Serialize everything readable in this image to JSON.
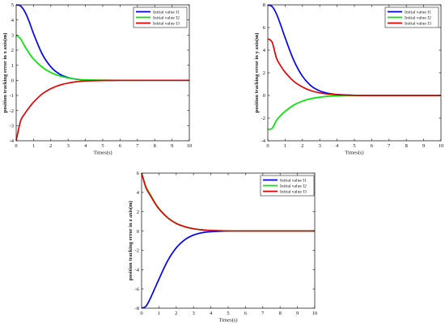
{
  "chart_data": [
    {
      "type": "line",
      "title": "",
      "xlabel": "Times(s)",
      "ylabel": "position tracking error in x axis(m)",
      "xlim": [
        0,
        10
      ],
      "ylim": [
        -4,
        5
      ],
      "xticks": [
        0,
        1,
        2,
        3,
        4,
        5,
        6,
        7,
        8,
        9,
        10
      ],
      "yticks": [
        -4,
        -3,
        -2,
        -1,
        0,
        1,
        2,
        3,
        4,
        5
      ],
      "grid": false,
      "legend_position": "top-right",
      "x": [
        0,
        0.25,
        0.5,
        0.75,
        1,
        1.5,
        2,
        2.5,
        3,
        3.5,
        4,
        5,
        6,
        7,
        8,
        9,
        10
      ],
      "series": [
        {
          "name": "Initial value I1",
          "color": "#0000ff",
          "values": [
            5,
            4.93,
            4.55,
            3.9,
            3.1,
            1.75,
            0.9,
            0.42,
            0.18,
            0.07,
            0.02,
            0,
            0,
            0,
            0,
            0,
            0
          ]
        },
        {
          "name": "Initial value I2",
          "color": "#00e600",
          "values": [
            3,
            2.75,
            2.25,
            1.8,
            1.42,
            0.88,
            0.52,
            0.3,
            0.16,
            0.08,
            0.03,
            0.01,
            0,
            0,
            0,
            0,
            0
          ]
        },
        {
          "name": "Initial value I3",
          "color": "#e60000",
          "values": [
            -4,
            -2.7,
            -2.2,
            -1.8,
            -1.45,
            -0.9,
            -0.55,
            -0.32,
            -0.18,
            -0.09,
            -0.04,
            -0.01,
            0,
            0,
            0,
            0,
            0
          ]
        }
      ]
    },
    {
      "type": "line",
      "title": "",
      "xlabel": "Times(s)",
      "ylabel": "position tracking error in y axis(m)",
      "xlim": [
        0,
        10
      ],
      "ylim": [
        -4,
        8
      ],
      "xticks": [
        0,
        1,
        2,
        3,
        4,
        5,
        6,
        7,
        8,
        9,
        10
      ],
      "yticks": [
        -4,
        -2,
        0,
        2,
        4,
        6,
        8
      ],
      "grid": false,
      "legend_position": "top-right",
      "x": [
        0,
        0.25,
        0.5,
        0.75,
        1,
        1.5,
        2,
        2.5,
        3,
        3.5,
        4,
        5,
        6,
        7,
        8,
        9,
        10
      ],
      "series": [
        {
          "name": "Initial value I1",
          "color": "#0000ff",
          "values": [
            8,
            7.85,
            7.2,
            6.2,
            5.1,
            3.1,
            1.7,
            0.85,
            0.4,
            0.18,
            0.08,
            0.01,
            0,
            0,
            0,
            0,
            0
          ]
        },
        {
          "name": "Initial value I2",
          "color": "#00e600",
          "values": [
            -3,
            -2.9,
            -2.2,
            -1.75,
            -1.4,
            -0.85,
            -0.5,
            -0.28,
            -0.15,
            -0.07,
            -0.03,
            -0.01,
            0,
            0,
            0,
            0,
            0
          ]
        },
        {
          "name": "Initial value I3",
          "color": "#e60000",
          "values": [
            5,
            4.7,
            3.3,
            2.6,
            2.05,
            1.25,
            0.75,
            0.42,
            0.23,
            0.12,
            0.06,
            0.01,
            0,
            0,
            0,
            0,
            0
          ]
        }
      ]
    },
    {
      "type": "line",
      "title": "",
      "xlabel": "Times(s)",
      "ylabel": "position tracking error in z axis(m)",
      "xlim": [
        0,
        10
      ],
      "ylim": [
        -8,
        6
      ],
      "xticks": [
        0,
        1,
        2,
        3,
        4,
        5,
        6,
        7,
        8,
        9,
        10
      ],
      "yticks": [
        -8,
        -6,
        -4,
        -2,
        0,
        2,
        4,
        6
      ],
      "grid": false,
      "legend_position": "top-right",
      "x": [
        0,
        0.25,
        0.5,
        0.75,
        1,
        1.5,
        2,
        2.5,
        3,
        3.5,
        4,
        5,
        6,
        7,
        8,
        9,
        10
      ],
      "series": [
        {
          "name": "Initial value I1",
          "color": "#0000ff",
          "values": [
            -8,
            -7.8,
            -7.0,
            -6.0,
            -5.0,
            -3.1,
            -1.75,
            -0.9,
            -0.42,
            -0.18,
            -0.07,
            -0.01,
            0,
            0,
            0,
            0,
            0
          ]
        },
        {
          "name": "Initial value I2",
          "color": "#00e600",
          "values": [
            6,
            4.6,
            3.8,
            3.0,
            2.35,
            1.4,
            0.8,
            0.45,
            0.24,
            0.12,
            0.06,
            0.01,
            0,
            0,
            0,
            0,
            0
          ]
        },
        {
          "name": "Initial value I3",
          "color": "#e60000",
          "values": [
            6,
            4.5,
            3.7,
            2.95,
            2.3,
            1.38,
            0.78,
            0.44,
            0.23,
            0.12,
            0.06,
            0.01,
            0,
            0,
            0,
            0,
            0
          ]
        }
      ]
    }
  ]
}
